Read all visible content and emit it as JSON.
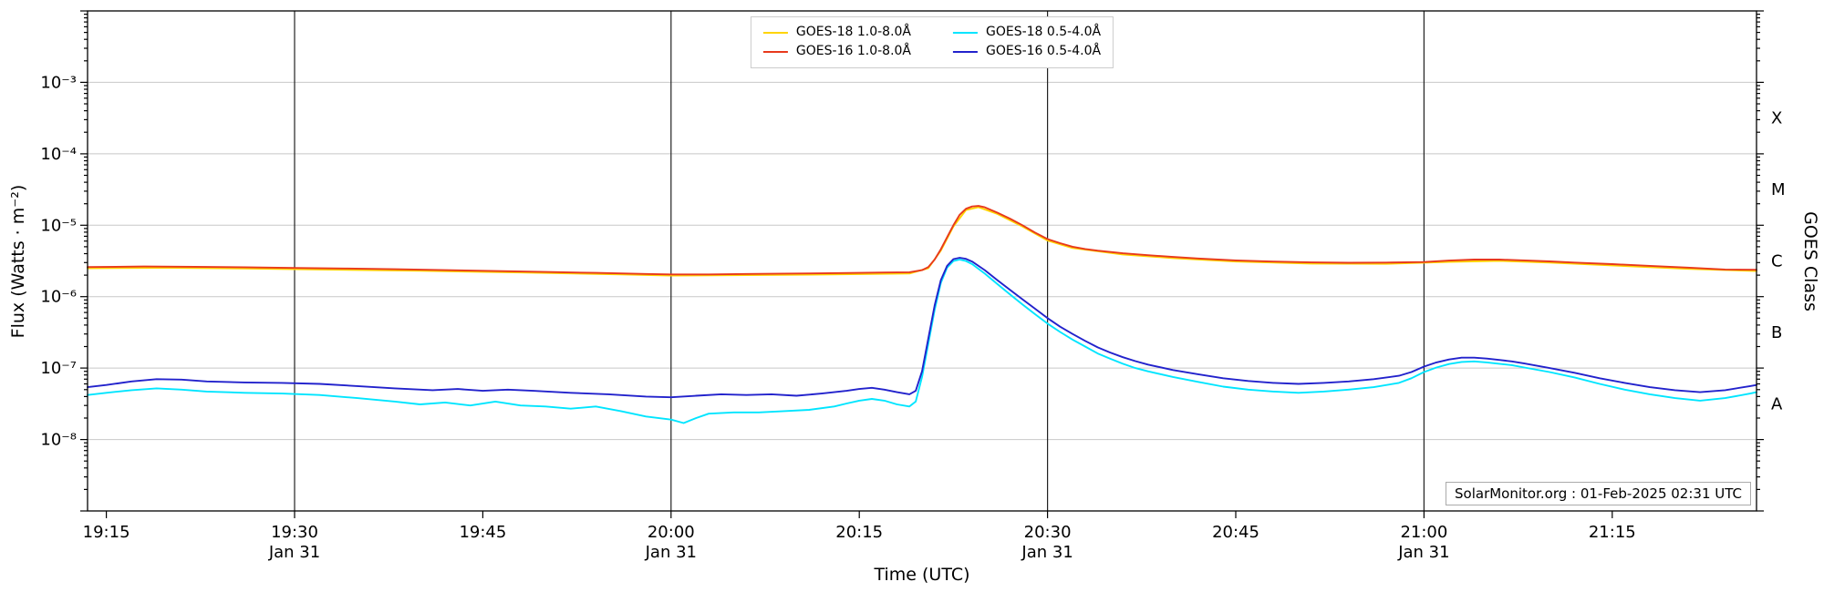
{
  "annotation": {
    "text": "SolarMonitor.org : 01-Feb-2025 02:31 UTC"
  },
  "axes": {
    "xlabel": "Time (UTC)",
    "ylabel_left": "Flux (Watts · m⁻²)",
    "ylabel_right": "GOES Class"
  },
  "chart_data": {
    "type": "line",
    "title": "",
    "x_unit": "minutes after 00:00 UTC on Jan 31",
    "x_range": [
      1153.5,
      1286.5
    ],
    "y_scale": "log",
    "y_range": [
      1e-09,
      0.01
    ],
    "grid": "horizontal-decades",
    "grid_color": "#c8c8c8",
    "frame_color": "#000000",
    "day_line_color": "#222222",
    "legend_position": "top-center",
    "x_ticks": [
      {
        "t": 1155,
        "label": "19:15"
      },
      {
        "t": 1170,
        "label": "19:30",
        "sub": "Jan 31"
      },
      {
        "t": 1185,
        "label": "19:45"
      },
      {
        "t": 1200,
        "label": "20:00",
        "sub": "Jan 31"
      },
      {
        "t": 1215,
        "label": "20:15"
      },
      {
        "t": 1230,
        "label": "20:30",
        "sub": "Jan 31"
      },
      {
        "t": 1245,
        "label": "20:45"
      },
      {
        "t": 1260,
        "label": "21:00",
        "sub": "Jan 31"
      },
      {
        "t": 1275,
        "label": "21:15"
      }
    ],
    "y_ticks": [
      {
        "v": 1e-08,
        "label": "10⁻⁸"
      },
      {
        "v": 1e-07,
        "label": "10⁻⁷"
      },
      {
        "v": 1e-06,
        "label": "10⁻⁶"
      },
      {
        "v": 1e-05,
        "label": "10⁻⁵"
      },
      {
        "v": 0.0001,
        "label": "10⁻⁴"
      },
      {
        "v": 0.001,
        "label": "10⁻³"
      }
    ],
    "right_axis_labels": [
      {
        "log": -7.5,
        "label": "A"
      },
      {
        "log": -6.5,
        "label": "B"
      },
      {
        "log": -5.5,
        "label": "C"
      },
      {
        "log": -4.5,
        "label": "M"
      },
      {
        "log": -3.5,
        "label": "X"
      }
    ],
    "day_boundary_lines": [
      1170,
      1200,
      1230,
      1260
    ],
    "series": [
      {
        "name": "GOES-18 1.0-8.0Å",
        "color": "#ffd400",
        "points": [
          [
            1153.5,
            2.5e-06
          ],
          [
            1160,
            2.53e-06
          ],
          [
            1166,
            2.48e-06
          ],
          [
            1172,
            2.4e-06
          ],
          [
            1180,
            2.3e-06
          ],
          [
            1188,
            2.18e-06
          ],
          [
            1196,
            2.05e-06
          ],
          [
            1200,
            1.97e-06
          ],
          [
            1206,
            2e-06
          ],
          [
            1212,
            2.04e-06
          ],
          [
            1219,
            2.11e-06
          ],
          [
            1220.5,
            2.5e-06
          ],
          [
            1221.5,
            4.4e-06
          ],
          [
            1222.5,
            9.6e-06
          ],
          [
            1223.5,
            1.63e-05
          ],
          [
            1224.5,
            1.79e-05
          ],
          [
            1226,
            1.44e-05
          ],
          [
            1228,
            9.6e-06
          ],
          [
            1230,
            6.1e-06
          ],
          [
            1232,
            4.8e-06
          ],
          [
            1236,
            3.9e-06
          ],
          [
            1240,
            3.46e-06
          ],
          [
            1245,
            3.1e-06
          ],
          [
            1251,
            2.9e-06
          ],
          [
            1257,
            2.88e-06
          ],
          [
            1262,
            3.07e-06
          ],
          [
            1266,
            3.17e-06
          ],
          [
            1270,
            3e-06
          ],
          [
            1275,
            2.74e-06
          ],
          [
            1281,
            2.45e-06
          ],
          [
            1286.5,
            2.28e-06
          ]
        ]
      },
      {
        "name": "GOES-16 1.0-8.0Å",
        "color": "#e8391c",
        "points": [
          [
            1153.5,
            2.6e-06
          ],
          [
            1158,
            2.64e-06
          ],
          [
            1162,
            2.62e-06
          ],
          [
            1166,
            2.58e-06
          ],
          [
            1170,
            2.52e-06
          ],
          [
            1174,
            2.48e-06
          ],
          [
            1178,
            2.42e-06
          ],
          [
            1182,
            2.35e-06
          ],
          [
            1186,
            2.28e-06
          ],
          [
            1190,
            2.22e-06
          ],
          [
            1194,
            2.15e-06
          ],
          [
            1198,
            2.08e-06
          ],
          [
            1200,
            2.05e-06
          ],
          [
            1203,
            2.05e-06
          ],
          [
            1206,
            2.08e-06
          ],
          [
            1209,
            2.1e-06
          ],
          [
            1212,
            2.12e-06
          ],
          [
            1215,
            2.15e-06
          ],
          [
            1217,
            2.18e-06
          ],
          [
            1219,
            2.2e-06
          ],
          [
            1220,
            2.35e-06
          ],
          [
            1220.5,
            2.6e-06
          ],
          [
            1221,
            3.3e-06
          ],
          [
            1221.5,
            4.6e-06
          ],
          [
            1222,
            6.8e-06
          ],
          [
            1222.5,
            1e-05
          ],
          [
            1223,
            1.4e-05
          ],
          [
            1223.5,
            1.7e-05
          ],
          [
            1224,
            1.83e-05
          ],
          [
            1224.5,
            1.86e-05
          ],
          [
            1225,
            1.78e-05
          ],
          [
            1226,
            1.5e-05
          ],
          [
            1227,
            1.24e-05
          ],
          [
            1228,
            1e-05
          ],
          [
            1229,
            7.9e-06
          ],
          [
            1230,
            6.4e-06
          ],
          [
            1231,
            5.6e-06
          ],
          [
            1232,
            5e-06
          ],
          [
            1233,
            4.65e-06
          ],
          [
            1234,
            4.4e-06
          ],
          [
            1236,
            4.05e-06
          ],
          [
            1238,
            3.8e-06
          ],
          [
            1240,
            3.6e-06
          ],
          [
            1242,
            3.42e-06
          ],
          [
            1245,
            3.22e-06
          ],
          [
            1248,
            3.1e-06
          ],
          [
            1251,
            3.02e-06
          ],
          [
            1254,
            2.98e-06
          ],
          [
            1257,
            3e-06
          ],
          [
            1260,
            3.05e-06
          ],
          [
            1262,
            3.2e-06
          ],
          [
            1264,
            3.3e-06
          ],
          [
            1266,
            3.3e-06
          ],
          [
            1268,
            3.22e-06
          ],
          [
            1270,
            3.12e-06
          ],
          [
            1272,
            3e-06
          ],
          [
            1275,
            2.85e-06
          ],
          [
            1278,
            2.7e-06
          ],
          [
            1281,
            2.55e-06
          ],
          [
            1284,
            2.4e-06
          ],
          [
            1286.5,
            2.38e-06
          ]
        ]
      },
      {
        "name": "GOES-18 0.5-4.0Å",
        "color": "#00e5ff",
        "points": [
          [
            1153.5,
            4.2e-08
          ],
          [
            1155,
            4.5e-08
          ],
          [
            1157,
            4.9e-08
          ],
          [
            1159,
            5.2e-08
          ],
          [
            1161,
            5e-08
          ],
          [
            1163,
            4.7e-08
          ],
          [
            1166,
            4.5e-08
          ],
          [
            1169,
            4.4e-08
          ],
          [
            1172,
            4.2e-08
          ],
          [
            1175,
            3.8e-08
          ],
          [
            1178,
            3.4e-08
          ],
          [
            1180,
            3.1e-08
          ],
          [
            1182,
            3.3e-08
          ],
          [
            1184,
            3e-08
          ],
          [
            1186,
            3.4e-08
          ],
          [
            1188,
            3e-08
          ],
          [
            1190,
            2.9e-08
          ],
          [
            1192,
            2.7e-08
          ],
          [
            1194,
            2.9e-08
          ],
          [
            1196,
            2.5e-08
          ],
          [
            1198,
            2.1e-08
          ],
          [
            1200,
            1.9e-08
          ],
          [
            1201,
            1.7e-08
          ],
          [
            1202,
            2e-08
          ],
          [
            1203,
            2.3e-08
          ],
          [
            1205,
            2.4e-08
          ],
          [
            1207,
            2.4e-08
          ],
          [
            1209,
            2.5e-08
          ],
          [
            1211,
            2.6e-08
          ],
          [
            1213,
            2.9e-08
          ],
          [
            1214,
            3.2e-08
          ],
          [
            1215,
            3.5e-08
          ],
          [
            1216,
            3.7e-08
          ],
          [
            1217,
            3.5e-08
          ],
          [
            1218,
            3.1e-08
          ],
          [
            1219,
            2.9e-08
          ],
          [
            1219.5,
            3.4e-08
          ],
          [
            1220,
            7.5e-08
          ],
          [
            1220.5,
            2.2e-07
          ],
          [
            1221,
            6.5e-07
          ],
          [
            1221.5,
            1.55e-06
          ],
          [
            1222,
            2.55e-06
          ],
          [
            1222.5,
            3.15e-06
          ],
          [
            1223,
            3.3e-06
          ],
          [
            1223.5,
            3.15e-06
          ],
          [
            1224,
            2.85e-06
          ],
          [
            1225,
            2.1e-06
          ],
          [
            1226,
            1.5e-06
          ],
          [
            1227,
            1.08e-06
          ],
          [
            1228,
            7.8e-07
          ],
          [
            1229,
            5.7e-07
          ],
          [
            1230,
            4.2e-07
          ],
          [
            1231,
            3.2e-07
          ],
          [
            1232,
            2.5e-07
          ],
          [
            1233,
            2e-07
          ],
          [
            1234,
            1.6e-07
          ],
          [
            1235,
            1.35e-07
          ],
          [
            1236,
            1.15e-07
          ],
          [
            1237,
            1e-07
          ],
          [
            1238,
            9e-08
          ],
          [
            1240,
            7.5e-08
          ],
          [
            1242,
            6.4e-08
          ],
          [
            1244,
            5.5e-08
          ],
          [
            1246,
            5e-08
          ],
          [
            1248,
            4.7e-08
          ],
          [
            1250,
            4.5e-08
          ],
          [
            1252,
            4.7e-08
          ],
          [
            1254,
            5e-08
          ],
          [
            1256,
            5.4e-08
          ],
          [
            1258,
            6.2e-08
          ],
          [
            1259,
            7.2e-08
          ],
          [
            1260,
            8.8e-08
          ],
          [
            1261,
            1.02e-07
          ],
          [
            1262,
            1.14e-07
          ],
          [
            1263,
            1.22e-07
          ],
          [
            1264,
            1.24e-07
          ],
          [
            1265,
            1.2e-07
          ],
          [
            1266,
            1.15e-07
          ],
          [
            1267,
            1.1e-07
          ],
          [
            1268,
            1.02e-07
          ],
          [
            1270,
            8.8e-08
          ],
          [
            1272,
            7.4e-08
          ],
          [
            1274,
            6e-08
          ],
          [
            1276,
            5e-08
          ],
          [
            1278,
            4.3e-08
          ],
          [
            1280,
            3.8e-08
          ],
          [
            1282,
            3.5e-08
          ],
          [
            1284,
            3.8e-08
          ],
          [
            1286,
            4.4e-08
          ],
          [
            1286.5,
            4.6e-08
          ]
        ]
      },
      {
        "name": "GOES-16 0.5-4.0Å",
        "color": "#2222cc",
        "points": [
          [
            1153.5,
            5.4e-08
          ],
          [
            1155,
            5.8e-08
          ],
          [
            1157,
            6.5e-08
          ],
          [
            1159,
            7e-08
          ],
          [
            1161,
            6.9e-08
          ],
          [
            1163,
            6.5e-08
          ],
          [
            1166,
            6.3e-08
          ],
          [
            1169,
            6.2e-08
          ],
          [
            1172,
            6e-08
          ],
          [
            1175,
            5.6e-08
          ],
          [
            1178,
            5.2e-08
          ],
          [
            1181,
            4.9e-08
          ],
          [
            1183,
            5.1e-08
          ],
          [
            1185,
            4.8e-08
          ],
          [
            1187,
            5e-08
          ],
          [
            1189,
            4.8e-08
          ],
          [
            1192,
            4.5e-08
          ],
          [
            1195,
            4.3e-08
          ],
          [
            1198,
            4e-08
          ],
          [
            1200,
            3.9e-08
          ],
          [
            1202,
            4.1e-08
          ],
          [
            1204,
            4.3e-08
          ],
          [
            1206,
            4.2e-08
          ],
          [
            1208,
            4.3e-08
          ],
          [
            1210,
            4.1e-08
          ],
          [
            1212,
            4.4e-08
          ],
          [
            1214,
            4.8e-08
          ],
          [
            1215,
            5.1e-08
          ],
          [
            1216,
            5.3e-08
          ],
          [
            1217,
            5e-08
          ],
          [
            1218,
            4.6e-08
          ],
          [
            1219,
            4.3e-08
          ],
          [
            1219.5,
            4.8e-08
          ],
          [
            1220,
            9e-08
          ],
          [
            1220.5,
            2.6e-07
          ],
          [
            1221,
            7.5e-07
          ],
          [
            1221.5,
            1.7e-06
          ],
          [
            1222,
            2.7e-06
          ],
          [
            1222.5,
            3.35e-06
          ],
          [
            1223,
            3.5e-06
          ],
          [
            1223.5,
            3.38e-06
          ],
          [
            1224,
            3.1e-06
          ],
          [
            1225,
            2.35e-06
          ],
          [
            1226,
            1.7e-06
          ],
          [
            1227,
            1.25e-06
          ],
          [
            1228,
            9.2e-07
          ],
          [
            1229,
            6.8e-07
          ],
          [
            1230,
            5e-07
          ],
          [
            1231,
            3.8e-07
          ],
          [
            1232,
            3e-07
          ],
          [
            1233,
            2.4e-07
          ],
          [
            1234,
            1.95e-07
          ],
          [
            1235,
            1.65e-07
          ],
          [
            1236,
            1.42e-07
          ],
          [
            1237,
            1.25e-07
          ],
          [
            1238,
            1.12e-07
          ],
          [
            1240,
            9.4e-08
          ],
          [
            1242,
            8.2e-08
          ],
          [
            1244,
            7.2e-08
          ],
          [
            1246,
            6.6e-08
          ],
          [
            1248,
            6.2e-08
          ],
          [
            1250,
            6e-08
          ],
          [
            1252,
            6.2e-08
          ],
          [
            1254,
            6.5e-08
          ],
          [
            1256,
            7e-08
          ],
          [
            1258,
            7.8e-08
          ],
          [
            1259,
            8.8e-08
          ],
          [
            1260,
            1.05e-07
          ],
          [
            1261,
            1.2e-07
          ],
          [
            1262,
            1.32e-07
          ],
          [
            1263,
            1.4e-07
          ],
          [
            1264,
            1.4e-07
          ],
          [
            1265,
            1.36e-07
          ],
          [
            1266,
            1.3e-07
          ],
          [
            1267,
            1.24e-07
          ],
          [
            1268,
            1.16e-07
          ],
          [
            1270,
            1e-07
          ],
          [
            1272,
            8.6e-08
          ],
          [
            1274,
            7.2e-08
          ],
          [
            1276,
            6.2e-08
          ],
          [
            1278,
            5.4e-08
          ],
          [
            1280,
            4.9e-08
          ],
          [
            1282,
            4.6e-08
          ],
          [
            1284,
            4.9e-08
          ],
          [
            1286,
            5.6e-08
          ],
          [
            1286.5,
            5.8e-08
          ]
        ]
      }
    ]
  }
}
